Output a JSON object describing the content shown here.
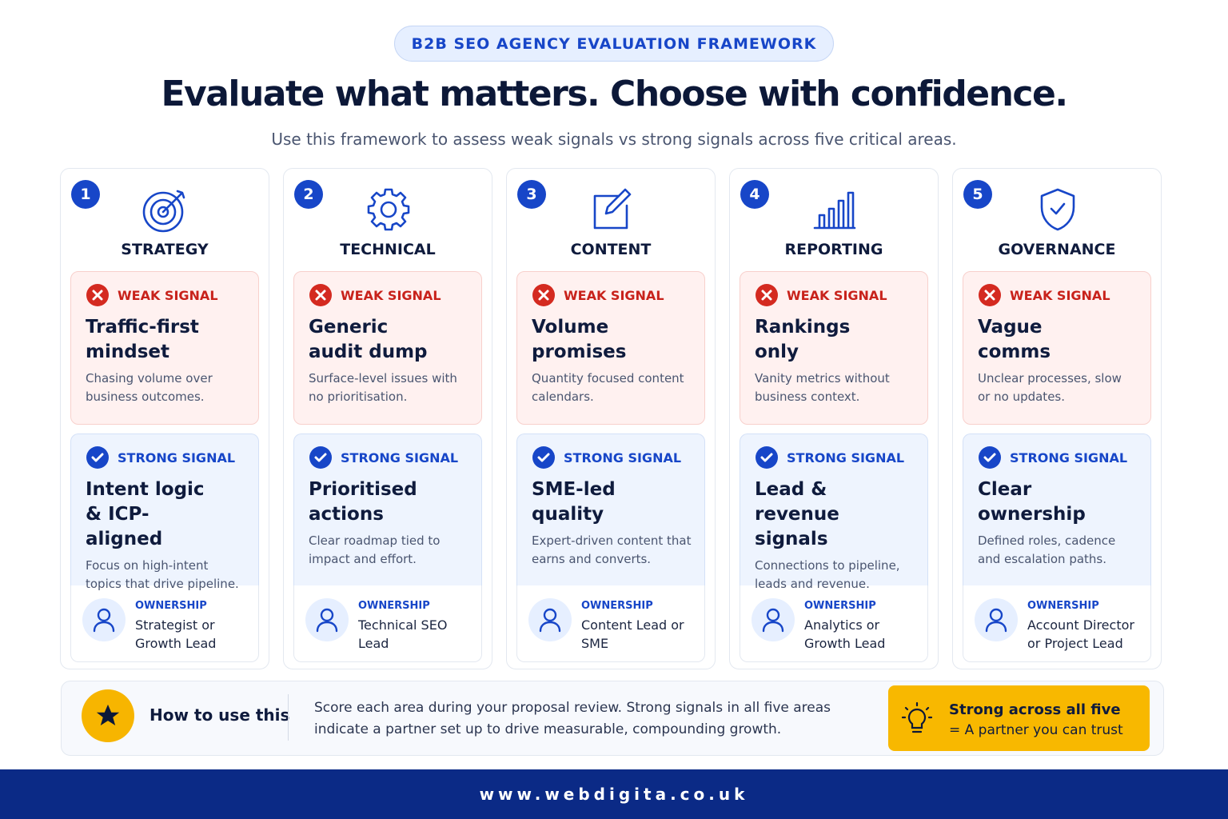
{
  "badge": "B2B SEO AGENCY EVALUATION FRAMEWORK",
  "title": "Evaluate what matters. Choose with confidence.",
  "subtitle": "Use this framework to assess weak signals vs strong signals across five critical areas.",
  "columns": [
    {
      "number": "1",
      "heading": "STRATEGY",
      "weak": {
        "label": "WEAK SIGNAL",
        "title": "Traffic-first mindset",
        "text": "Chasing volume over business outcomes."
      },
      "strong": {
        "label": "STRONG SIGNAL",
        "title": "Intent logic & ICP-aligned",
        "text": "Focus on high-intent topics that drive pipeline."
      },
      "ownership": {
        "label": "OWNERSHIP",
        "text": "Strategist or Growth Lead"
      }
    },
    {
      "number": "2",
      "heading": "TECHNICAL",
      "weak": {
        "label": "WEAK SIGNAL",
        "title": "Generic audit dump",
        "text": "Surface-level issues with no prioritisation."
      },
      "strong": {
        "label": "STRONG SIGNAL",
        "title": "Prioritised actions",
        "text": "Clear roadmap tied to impact and effort."
      },
      "ownership": {
        "label": "OWNERSHIP",
        "text": "Technical SEO Lead"
      }
    },
    {
      "number": "3",
      "heading": "CONTENT",
      "weak": {
        "label": "WEAK SIGNAL",
        "title": "Volume promises",
        "text": "Quantity focused content calendars."
      },
      "strong": {
        "label": "STRONG SIGNAL",
        "title": "SME-led quality",
        "text": "Expert-driven content that earns and converts."
      },
      "ownership": {
        "label": "OWNERSHIP",
        "text": "Content Lead or SME"
      }
    },
    {
      "number": "4",
      "heading": "REPORTING",
      "weak": {
        "label": "WEAK SIGNAL",
        "title": "Rankings only",
        "text": "Vanity metrics without business context."
      },
      "strong": {
        "label": "STRONG SIGNAL",
        "title": "Lead & revenue signals",
        "text": "Connections to pipeline, leads and revenue."
      },
      "ownership": {
        "label": "OWNERSHIP",
        "text": "Analytics or Growth Lead"
      }
    },
    {
      "number": "5",
      "heading": "GOVERNANCE",
      "weak": {
        "label": "WEAK SIGNAL",
        "title": "Vague comms",
        "text": "Unclear processes, slow or no updates."
      },
      "strong": {
        "label": "STRONG SIGNAL",
        "title": "Clear ownership",
        "text": "Defined roles, cadence and escalation paths."
      },
      "ownership": {
        "label": "OWNERSHIP",
        "text": "Account Director or Project Lead"
      }
    }
  ],
  "how_to": {
    "title": "How to use this",
    "text": "Score each area during your proposal review. Strong signals in all five areas indicate a partner set up to drive measurable, compounding growth.",
    "callout_title": "Strong across all five",
    "callout_text": "= A partner you can trust"
  },
  "url": "www.webdigita.co.uk"
}
